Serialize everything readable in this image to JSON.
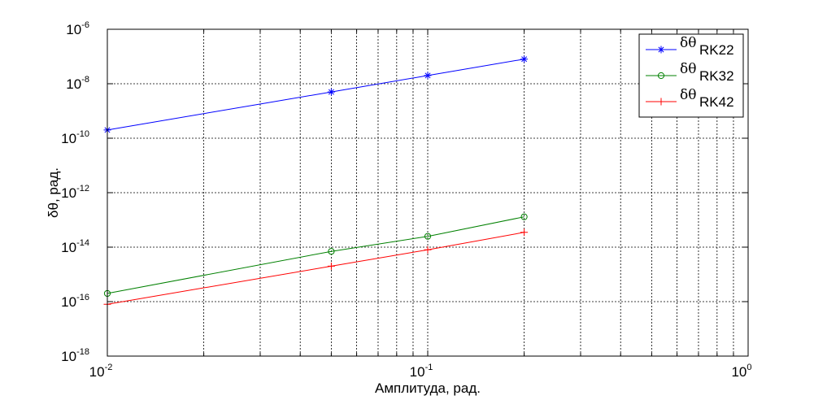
{
  "chart_data": {
    "type": "line",
    "title": "",
    "xlabel": "Амплитуда, рад.",
    "ylabel": "δθ, рад.",
    "x_scale": "log",
    "y_scale": "log",
    "xlim": [
      0.01,
      1
    ],
    "ylim": [
      1e-18,
      1e-06
    ],
    "grid": true,
    "legend_position": "top-right",
    "x_ticks": [
      {
        "base": "10",
        "exp": "-2",
        "value": 0.01
      },
      {
        "base": "10",
        "exp": "-1",
        "value": 0.1
      },
      {
        "base": "10",
        "exp": "0",
        "value": 1
      }
    ],
    "y_ticks": [
      {
        "base": "10",
        "exp": "-18",
        "value": 1e-18
      },
      {
        "base": "10",
        "exp": "-16",
        "value": 1e-16
      },
      {
        "base": "10",
        "exp": "-14",
        "value": 1e-14
      },
      {
        "base": "10",
        "exp": "-12",
        "value": 1e-12
      },
      {
        "base": "10",
        "exp": "-10",
        "value": 1e-10
      },
      {
        "base": "10",
        "exp": "-8",
        "value": 1e-08
      },
      {
        "base": "10",
        "exp": "-6",
        "value": 1e-06
      }
    ],
    "series": [
      {
        "name": "RK22",
        "legend_symbol": "δθ",
        "color": "#0000ff",
        "marker": "star",
        "x": [
          0.01,
          0.05,
          0.1,
          0.2
        ],
        "y": [
          2e-10,
          5e-09,
          2e-08,
          8e-08
        ]
      },
      {
        "name": "RK32",
        "legend_symbol": "δθ",
        "color": "#008000",
        "marker": "circle",
        "x": [
          0.01,
          0.05,
          0.1,
          0.2
        ],
        "y": [
          2e-16,
          7e-15,
          2.5e-14,
          1.3e-13
        ]
      },
      {
        "name": "RK42",
        "legend_symbol": "δθ",
        "color": "#ff0000",
        "marker": "plus",
        "x": [
          0.01,
          0.05,
          0.1,
          0.2
        ],
        "y": [
          8e-17,
          2e-15,
          8e-15,
          3.5e-14
        ]
      }
    ]
  }
}
